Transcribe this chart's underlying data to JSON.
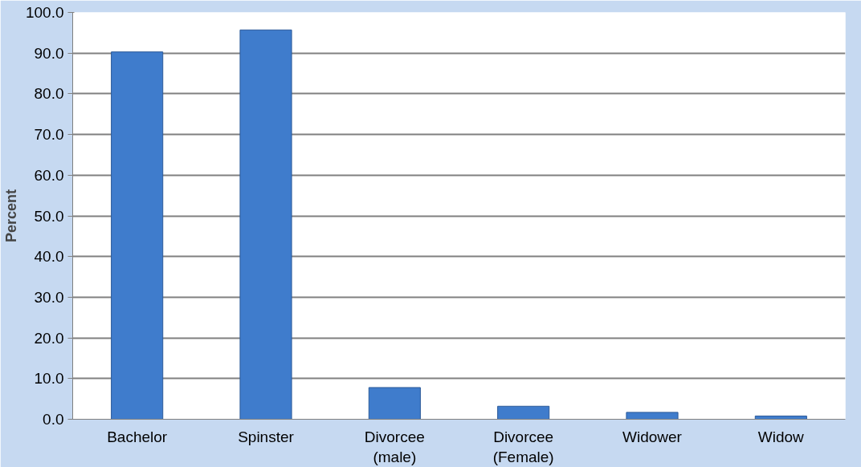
{
  "chart_data": {
    "type": "bar",
    "ylabel": "Percent",
    "categories": [
      "Bachelor",
      "Spinster",
      "Divorcee (male)",
      "Divorcee (Female)",
      "Widower",
      "Widow"
    ],
    "values": [
      90.3,
      95.7,
      7.8,
      3.2,
      1.7,
      0.8
    ],
    "color": "#3f7ccc",
    "ylim": [
      0,
      100
    ],
    "yticks": [
      {
        "value": 0,
        "label": "0.0"
      },
      {
        "value": 10,
        "label": "10.0"
      },
      {
        "value": 20,
        "label": "20.0"
      },
      {
        "value": 30,
        "label": "30.0"
      },
      {
        "value": 40,
        "label": "40.0"
      },
      {
        "value": 50,
        "label": "50.0"
      },
      {
        "value": 60,
        "label": "60.0"
      },
      {
        "value": 70,
        "label": "70.0"
      },
      {
        "value": 80,
        "label": "80.0"
      },
      {
        "value": 90,
        "label": "90.0"
      },
      {
        "value": 100,
        "label": "100.0"
      }
    ],
    "grid": "y"
  }
}
